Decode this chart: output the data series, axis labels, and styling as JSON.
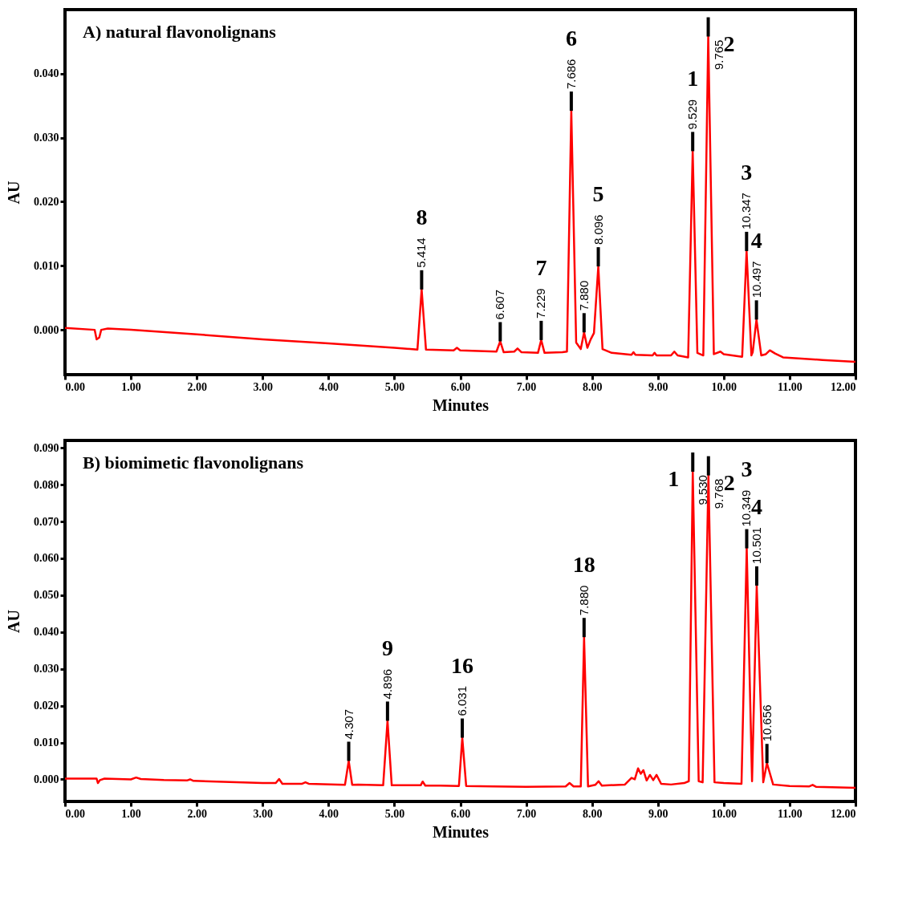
{
  "chart_data": [
    {
      "type": "line",
      "title": "A) natural flavonolignans",
      "xlabel": "Minutes",
      "ylabel": "AU",
      "series": [
        {
          "color": "#ff0000",
          "x": [
            0.0,
            0.45,
            0.48,
            0.52,
            0.55,
            0.65,
            1.0,
            2.0,
            3.0,
            4.0,
            5.0,
            5.35,
            5.414,
            5.48,
            5.9,
            5.95,
            6.0,
            6.55,
            6.607,
            6.66,
            6.82,
            6.87,
            6.93,
            7.18,
            7.229,
            7.28,
            7.55,
            7.62,
            7.686,
            7.76,
            7.83,
            7.88,
            7.93,
            7.98,
            8.03,
            8.096,
            8.16,
            8.3,
            8.6,
            8.63,
            8.66,
            8.92,
            8.95,
            8.98,
            9.2,
            9.25,
            9.3,
            9.46,
            9.529,
            9.6,
            9.69,
            9.765,
            9.85,
            9.95,
            10.0,
            10.28,
            10.347,
            10.42,
            10.44,
            10.497,
            10.57,
            10.64,
            10.7,
            10.78,
            10.9,
            11.5,
            12.0
          ],
          "values": [
            0.0003,
            0.0,
            -0.0015,
            -0.0012,
            0.0,
            0.0002,
            0.0,
            -0.0007,
            -0.0015,
            -0.0021,
            -0.0028,
            -0.0031,
            0.0063,
            -0.0031,
            -0.0032,
            -0.0028,
            -0.0032,
            -0.0034,
            -0.0018,
            -0.0035,
            -0.0034,
            -0.0029,
            -0.0035,
            -0.0036,
            -0.0016,
            -0.0036,
            -0.0035,
            -0.0034,
            0.0342,
            -0.002,
            -0.003,
            -0.0004,
            -0.0028,
            -0.0015,
            -0.0005,
            0.0099,
            -0.003,
            -0.0036,
            -0.0039,
            -0.0035,
            -0.0039,
            -0.004,
            -0.0036,
            -0.004,
            -0.004,
            -0.0034,
            -0.004,
            -0.0043,
            0.0279,
            -0.0036,
            -0.004,
            0.0458,
            -0.0038,
            -0.0034,
            -0.0038,
            -0.0042,
            0.0123,
            -0.004,
            -0.0035,
            0.0016,
            -0.004,
            -0.0038,
            -0.0032,
            -0.0037,
            -0.0043,
            -0.0047,
            -0.005
          ]
        }
      ],
      "xlim": [
        0,
        12
      ],
      "ylim": [
        -0.007,
        0.05
      ],
      "xticks": [
        {
          "value": 0,
          "label": "0.00"
        },
        {
          "value": 1,
          "label": "1.00"
        },
        {
          "value": 2,
          "label": "2.00"
        },
        {
          "value": 3,
          "label": "3.00"
        },
        {
          "value": 4,
          "label": "4.00"
        },
        {
          "value": 5,
          "label": "5.00"
        },
        {
          "value": 6,
          "label": "6.00"
        },
        {
          "value": 7,
          "label": "7.00"
        },
        {
          "value": 8,
          "label": "8.00"
        },
        {
          "value": 9,
          "label": "9.00"
        },
        {
          "value": 10,
          "label": "10.00"
        },
        {
          "value": 11,
          "label": "11.00"
        },
        {
          "value": 12,
          "label": "12.00"
        }
      ],
      "yticks": [
        {
          "value": 0,
          "label": "0.000"
        },
        {
          "value": 0.01,
          "label": "0.010"
        },
        {
          "value": 0.02,
          "label": "0.020"
        },
        {
          "value": 0.03,
          "label": "0.030"
        },
        {
          "value": 0.04,
          "label": "0.040"
        }
      ],
      "grid": false,
      "marker": "none",
      "line_style": "solid",
      "annotations": [
        {
          "text": "5.414",
          "x": 5.414,
          "y": 0.0063
        },
        {
          "text": "6.607",
          "x": 6.607,
          "y": -0.0018
        },
        {
          "text": "7.229",
          "x": 7.229,
          "y": -0.0016
        },
        {
          "text": "7.686",
          "x": 7.686,
          "y": 0.0342
        },
        {
          "text": "7.880",
          "x": 7.88,
          "y": -0.0004
        },
        {
          "text": "8.096",
          "x": 8.096,
          "y": 0.0099
        },
        {
          "text": "9.529",
          "x": 9.529,
          "y": 0.0279
        },
        {
          "text": "9.765",
          "x": 9.765,
          "y": 0.0458
        },
        {
          "text": "10.347",
          "x": 10.347,
          "y": 0.0123
        },
        {
          "text": "10.497",
          "x": 10.497,
          "y": 0.0016
        },
        {
          "text": "8",
          "x": 5.414,
          "y": 0.0063
        },
        {
          "text": "7",
          "x": 7.229,
          "y": -0.0016
        },
        {
          "text": "6",
          "x": 7.686,
          "y": 0.0342
        },
        {
          "text": "5",
          "x": 8.096,
          "y": 0.0099
        },
        {
          "text": "1",
          "x": 9.529,
          "y": 0.0279
        },
        {
          "text": "2",
          "x": 9.765,
          "y": 0.0458
        },
        {
          "text": "3",
          "x": 10.347,
          "y": 0.0123
        },
        {
          "text": "4",
          "x": 10.497,
          "y": 0.0016
        }
      ]
    },
    {
      "type": "line",
      "title": "B) biomimetic flavonolignans",
      "xlabel": "Minutes",
      "ylabel": "AU",
      "series": [
        {
          "color": "#ff0000",
          "x": [
            0.0,
            0.48,
            0.5,
            0.53,
            0.6,
            1.0,
            1.08,
            1.15,
            1.5,
            1.85,
            1.9,
            1.95,
            2.5,
            3.0,
            3.2,
            3.25,
            3.3,
            3.6,
            3.65,
            3.7,
            4.25,
            4.307,
            4.36,
            4.45,
            4.83,
            4.896,
            4.96,
            5.4,
            5.43,
            5.47,
            5.7,
            5.98,
            6.031,
            6.09,
            6.5,
            7.0,
            7.6,
            7.66,
            7.72,
            7.83,
            7.88,
            7.94,
            8.05,
            8.1,
            8.15,
            8.5,
            8.6,
            8.65,
            8.7,
            8.74,
            8.78,
            8.83,
            8.88,
            8.93,
            8.98,
            9.05,
            9.2,
            9.4,
            9.47,
            9.53,
            9.62,
            9.68,
            9.768,
            9.86,
            10.0,
            10.27,
            10.349,
            10.43,
            10.501,
            10.6,
            10.656,
            10.75,
            11.0,
            11.3,
            11.35,
            11.4,
            12.0
          ],
          "values": [
            0.0002,
            0.0002,
            -0.001,
            -0.0002,
            0.0002,
            0.0,
            0.0005,
            0.0001,
            -0.0002,
            -0.0003,
            0.0,
            -0.0004,
            -0.0007,
            -0.001,
            -0.001,
            0.0001,
            -0.0012,
            -0.0012,
            -0.0008,
            -0.0012,
            -0.0015,
            0.005,
            -0.0015,
            -0.0014,
            -0.0016,
            0.0159,
            -0.0016,
            -0.0016,
            -0.0006,
            -0.0017,
            -0.0017,
            -0.0018,
            0.0113,
            -0.0018,
            -0.0019,
            -0.002,
            -0.0019,
            -0.001,
            -0.0019,
            -0.0019,
            0.0386,
            -0.0019,
            -0.0015,
            -0.0005,
            -0.0017,
            -0.0014,
            0.0004,
            0.0,
            0.003,
            0.0015,
            0.0025,
            -0.0003,
            0.0012,
            -0.0002,
            0.0012,
            -0.0012,
            -0.0014,
            -0.001,
            -0.0005,
            0.0835,
            -0.0005,
            -0.0008,
            0.0825,
            -0.0008,
            -0.001,
            -0.0012,
            0.0627,
            -0.0005,
            0.0526,
            -0.0008,
            0.0044,
            -0.0014,
            -0.0018,
            -0.0019,
            -0.0015,
            -0.002,
            -0.0023
          ]
        }
      ],
      "xlim": [
        0,
        12
      ],
      "ylim": [
        -0.006,
        0.092
      ],
      "xticks": [
        {
          "value": 0,
          "label": "0.00"
        },
        {
          "value": 1,
          "label": "1.00"
        },
        {
          "value": 2,
          "label": "2.00"
        },
        {
          "value": 3,
          "label": "3.00"
        },
        {
          "value": 4,
          "label": "4.00"
        },
        {
          "value": 5,
          "label": "5.00"
        },
        {
          "value": 6,
          "label": "6.00"
        },
        {
          "value": 7,
          "label": "7.00"
        },
        {
          "value": 8,
          "label": "8.00"
        },
        {
          "value": 9,
          "label": "9.00"
        },
        {
          "value": 10,
          "label": "10.00"
        },
        {
          "value": 11,
          "label": "11.00"
        },
        {
          "value": 12,
          "label": "12.00"
        }
      ],
      "yticks": [
        {
          "value": 0,
          "label": "0.000"
        },
        {
          "value": 0.01,
          "label": "0.010"
        },
        {
          "value": 0.02,
          "label": "0.020"
        },
        {
          "value": 0.03,
          "label": "0.030"
        },
        {
          "value": 0.04,
          "label": "0.040"
        },
        {
          "value": 0.05,
          "label": "0.050"
        },
        {
          "value": 0.06,
          "label": "0.060"
        },
        {
          "value": 0.07,
          "label": "0.070"
        },
        {
          "value": 0.08,
          "label": "0.080"
        },
        {
          "value": 0.09,
          "label": "0.090"
        }
      ],
      "grid": false,
      "marker": "none",
      "line_style": "solid",
      "annotations": [
        {
          "text": "4.307",
          "x": 4.307,
          "y": 0.005
        },
        {
          "text": "4.896",
          "x": 4.896,
          "y": 0.0159
        },
        {
          "text": "6.031",
          "x": 6.031,
          "y": 0.0113
        },
        {
          "text": "7.880",
          "x": 7.88,
          "y": 0.0386
        },
        {
          "text": "9.530",
          "x": 9.53,
          "y": 0.0835
        },
        {
          "text": "9.768",
          "x": 9.768,
          "y": 0.0825
        },
        {
          "text": "10.349",
          "x": 10.349,
          "y": 0.0627
        },
        {
          "text": "10.501",
          "x": 10.501,
          "y": 0.0526
        },
        {
          "text": "10.656",
          "x": 10.656,
          "y": 0.0044
        },
        {
          "text": "9",
          "x": 4.896,
          "y": 0.0159
        },
        {
          "text": "16",
          "x": 6.031,
          "y": 0.0113
        },
        {
          "text": "18",
          "x": 7.88,
          "y": 0.0386
        },
        {
          "text": "1",
          "x": 9.53,
          "y": 0.0835
        },
        {
          "text": "2",
          "x": 9.768,
          "y": 0.0825
        },
        {
          "text": "3",
          "x": 10.349,
          "y": 0.0627
        },
        {
          "text": "4",
          "x": 10.501,
          "y": 0.0526
        }
      ]
    }
  ]
}
